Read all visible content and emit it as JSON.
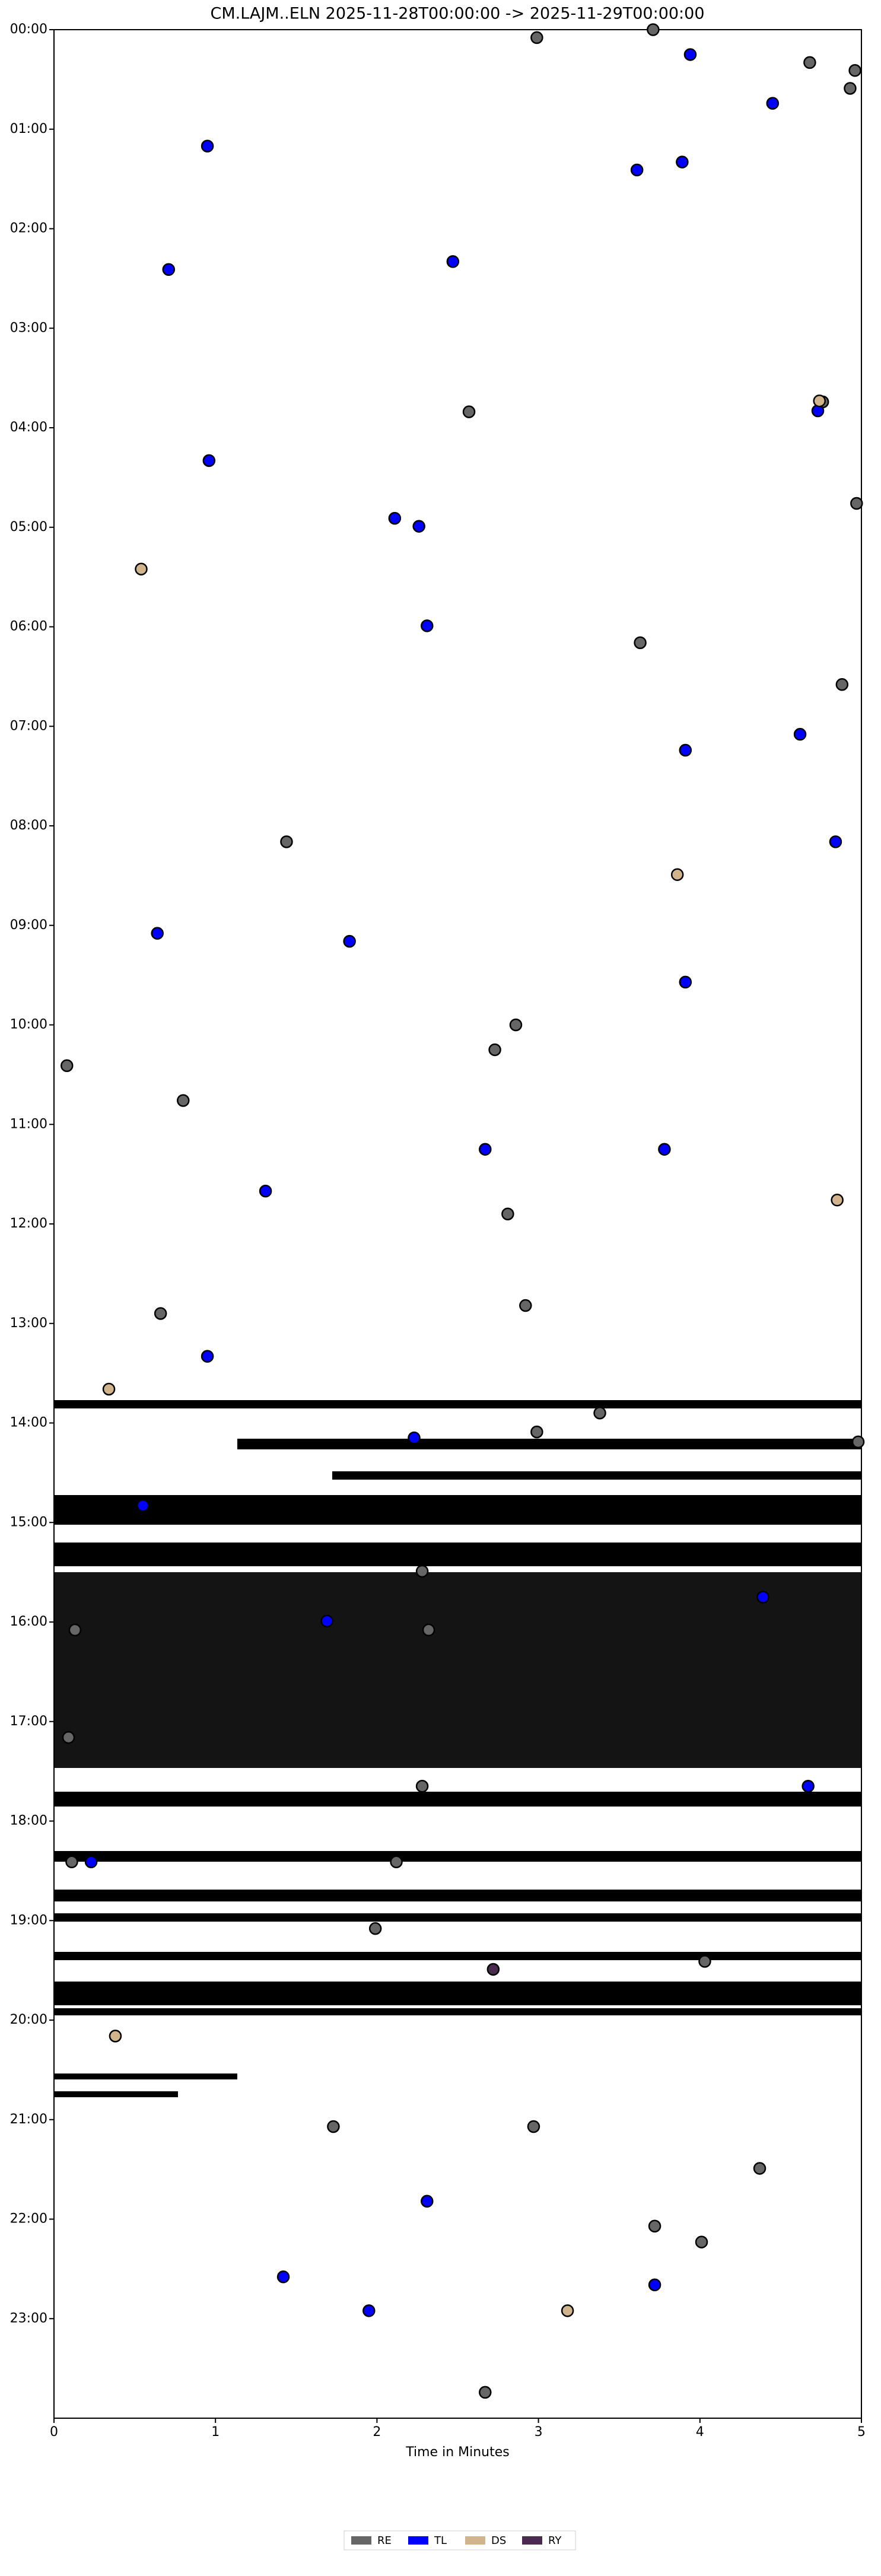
{
  "chart_data": {
    "type": "scatter",
    "title": "CM.LAJM..ELN  2025-11-28T00:00:00 -> 2025-11-29T00:00:00",
    "x_label": "Time in Minutes",
    "xlim": [
      0,
      5
    ],
    "xticks": [
      0,
      1,
      2,
      3,
      4,
      5
    ],
    "ylim": [
      0,
      24
    ],
    "y_inverted": true,
    "yticks": [
      {
        "value": 0,
        "label": "00:00"
      },
      {
        "value": 1,
        "label": "01:00"
      },
      {
        "value": 2,
        "label": "02:00"
      },
      {
        "value": 3,
        "label": "03:00"
      },
      {
        "value": 4,
        "label": "04:00"
      },
      {
        "value": 5,
        "label": "05:00"
      },
      {
        "value": 6,
        "label": "06:00"
      },
      {
        "value": 7,
        "label": "07:00"
      },
      {
        "value": 8,
        "label": "08:00"
      },
      {
        "value": 9,
        "label": "09:00"
      },
      {
        "value": 10,
        "label": "10:00"
      },
      {
        "value": 11,
        "label": "11:00"
      },
      {
        "value": 12,
        "label": "12:00"
      },
      {
        "value": 13,
        "label": "13:00"
      },
      {
        "value": 14,
        "label": "14:00"
      },
      {
        "value": 15,
        "label": "15:00"
      },
      {
        "value": 16,
        "label": "16:00"
      },
      {
        "value": 17,
        "label": "17:00"
      },
      {
        "value": 18,
        "label": "18:00"
      },
      {
        "value": 19,
        "label": "19:00"
      },
      {
        "value": 20,
        "label": "20:00"
      },
      {
        "value": 21,
        "label": "21:00"
      },
      {
        "value": 22,
        "label": "22:00"
      },
      {
        "value": 23,
        "label": "23:00"
      }
    ],
    "series": [
      {
        "name": "RE",
        "color": "#666666",
        "x": [
          3.71,
          2.99,
          4.68,
          4.96,
          4.93,
          4.76,
          2.57,
          4.97,
          3.63,
          4.88,
          1.44,
          2.86,
          2.73,
          0.08,
          0.8,
          2.81,
          0.66,
          2.92,
          3.38,
          2.99,
          4.98,
          2.28,
          0.13,
          2.32,
          0.09,
          2.28,
          2.12,
          1.99,
          4.03,
          1.73,
          2.97,
          4.37,
          3.72,
          4.01,
          2.67,
          0.11
        ],
        "values": [
          0.0,
          0.08,
          0.33,
          0.41,
          0.59,
          3.74,
          3.84,
          4.76,
          6.16,
          6.58,
          8.16,
          10.0,
          10.25,
          10.41,
          10.76,
          11.9,
          12.9,
          12.82,
          13.9,
          14.09,
          14.19,
          15.49,
          16.08,
          16.08,
          17.16,
          17.65,
          18.41,
          19.08,
          19.41,
          21.07,
          21.07,
          21.49,
          22.07,
          22.23,
          23.74,
          18.41
        ]
      },
      {
        "name": "TL",
        "color": "#0000ff",
        "x": [
          3.94,
          4.45,
          0.95,
          3.89,
          3.61,
          0.71,
          2.47,
          4.73,
          0.96,
          2.11,
          2.26,
          2.31,
          4.62,
          3.91,
          4.84,
          0.64,
          1.83,
          3.91,
          2.67,
          3.78,
          1.31,
          0.95,
          2.23,
          0.55,
          1.69,
          4.39,
          4.67,
          0.23,
          2.31,
          1.42,
          1.95,
          3.72
        ],
        "values": [
          0.25,
          0.74,
          1.17,
          1.33,
          1.41,
          2.41,
          2.33,
          3.83,
          4.33,
          4.91,
          4.99,
          5.99,
          7.08,
          7.24,
          8.16,
          9.08,
          9.16,
          9.57,
          11.25,
          11.25,
          11.67,
          13.33,
          14.15,
          14.83,
          15.99,
          15.75,
          17.65,
          18.41,
          21.82,
          22.58,
          22.92,
          22.66
        ]
      },
      {
        "name": "DS",
        "color": "#d2b48c",
        "x": [
          0.54,
          4.74,
          3.86,
          4.85,
          0.34,
          0.38,
          3.18
        ],
        "values": [
          5.42,
          3.73,
          8.49,
          11.76,
          13.66,
          20.16,
          22.92
        ]
      },
      {
        "name": "RY",
        "color": "#4b2a4f",
        "x": [
          2.72
        ],
        "values": [
          19.49
        ]
      }
    ]
  }
}
